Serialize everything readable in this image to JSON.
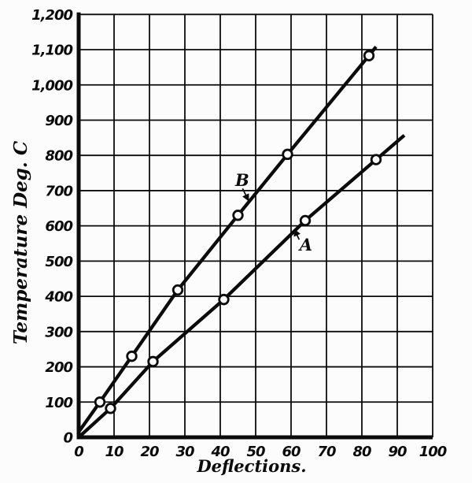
{
  "figure": {
    "background_color": "#fcfcfc",
    "ink_color": "#0b0b0b",
    "marker_fill_color": "#fcfcfc"
  },
  "chart_data": {
    "type": "line",
    "title": "",
    "xlabel": "Deflections.",
    "ylabel": "Temperature Deg. C",
    "xlim": [
      0,
      100
    ],
    "ylim": [
      0,
      1200
    ],
    "grid": true,
    "x_ticks": [
      0,
      10,
      20,
      30,
      40,
      50,
      60,
      70,
      80,
      90,
      100
    ],
    "x_tick_labels": [
      "0",
      "10",
      "20",
      "30",
      "40",
      "50",
      "60",
      "70",
      "80",
      "90",
      "100"
    ],
    "y_ticks": [
      0,
      100,
      200,
      300,
      400,
      500,
      600,
      700,
      800,
      900,
      1000,
      1100,
      1200
    ],
    "y_tick_labels": [
      "0",
      "100",
      "200",
      "300",
      "400",
      "500",
      "600",
      "700",
      "800",
      "900",
      "1,000",
      "1,100",
      "1,200"
    ],
    "marker_style": "open-circle",
    "series": [
      {
        "name": "A",
        "points": [
          [
            9,
            82
          ],
          [
            21,
            215
          ],
          [
            41,
            391
          ],
          [
            64,
            615
          ],
          [
            84,
            788
          ]
        ],
        "line_start": [
          0,
          0
        ],
        "line_end": [
          92,
          857
        ]
      },
      {
        "name": "B",
        "points": [
          [
            6,
            100
          ],
          [
            15,
            230
          ],
          [
            28,
            418
          ],
          [
            45,
            630
          ],
          [
            59,
            803
          ],
          [
            82,
            1083
          ]
        ],
        "line_start": [
          0,
          15
        ],
        "line_end": [
          84,
          1108
        ]
      }
    ],
    "annotations": [
      {
        "text": "B",
        "at": [
          46.2,
          729
        ],
        "arrow_from": [
          46.3,
          706
        ],
        "arrow_to": [
          47.9,
          673
        ]
      },
      {
        "text": "A",
        "at": [
          64.2,
          546
        ],
        "arrow_from": [
          62.3,
          561
        ],
        "arrow_to": [
          61.0,
          588
        ]
      }
    ]
  }
}
